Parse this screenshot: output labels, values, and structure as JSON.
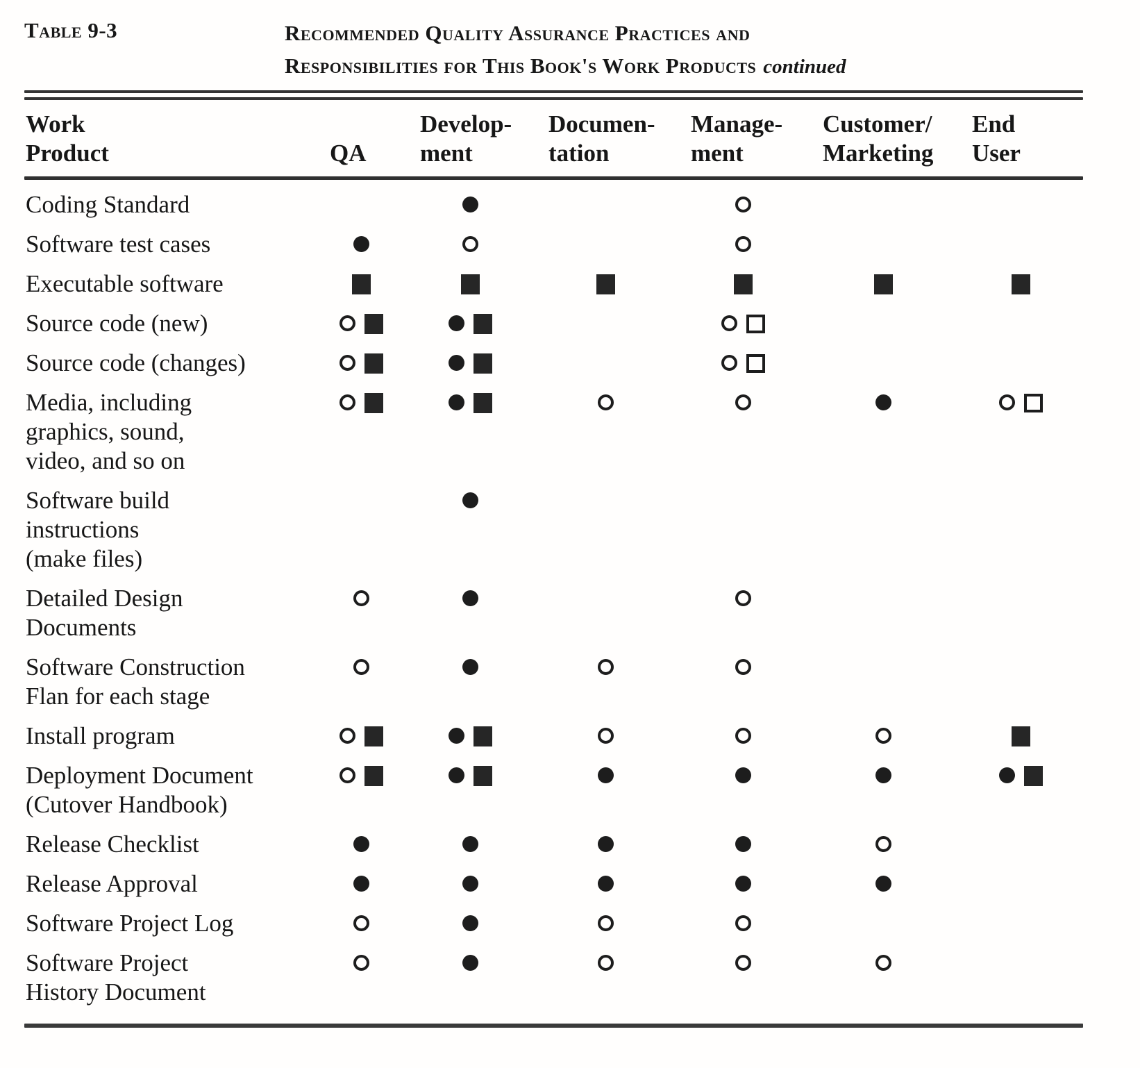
{
  "colors": {
    "ink": "#1d1d1d",
    "paper": "#fffefd"
  },
  "caption": {
    "label": "Table 9-3",
    "title_line1": "Recommended Quality Assurance Practices and",
    "title_line2": "Responsibilities for This Book's Work Products",
    "continued": "continued"
  },
  "header": {
    "product_lines": [
      "Work",
      "Product"
    ],
    "columns": [
      {
        "key": "qa",
        "lines": [
          "QA"
        ]
      },
      {
        "key": "development",
        "lines": [
          "Develop-",
          "ment"
        ]
      },
      {
        "key": "documentation",
        "lines": [
          "Documen-",
          "tation"
        ]
      },
      {
        "key": "management",
        "lines": [
          "Manage-",
          "ment"
        ]
      },
      {
        "key": "customer-marketing",
        "lines": [
          "Customer/",
          "Marketing"
        ]
      },
      {
        "key": "end-user",
        "lines": [
          "End",
          "User"
        ]
      }
    ]
  },
  "symbols": {
    "fc": "filled-circle",
    "oc": "open-circle",
    "fs": "filled-square",
    "os": "open-square"
  },
  "rows": [
    {
      "product_lines": [
        "Coding Standard"
      ],
      "cells": [
        [],
        [
          "fc"
        ],
        [],
        [
          "oc"
        ],
        [],
        []
      ]
    },
    {
      "product_lines": [
        "Software test cases"
      ],
      "cells": [
        [
          "fc"
        ],
        [
          "oc"
        ],
        [],
        [
          "oc"
        ],
        [],
        []
      ]
    },
    {
      "product_lines": [
        "Executable software"
      ],
      "cells": [
        [
          "fs"
        ],
        [
          "fs"
        ],
        [
          "fs"
        ],
        [
          "fs"
        ],
        [
          "fs"
        ],
        [
          "fs"
        ]
      ]
    },
    {
      "product_lines": [
        "Source code (new)"
      ],
      "cells": [
        [
          "oc",
          "fs"
        ],
        [
          "fc",
          "fs"
        ],
        [],
        [
          "oc",
          "os"
        ],
        [],
        []
      ]
    },
    {
      "product_lines": [
        "Source code (changes)"
      ],
      "cells": [
        [
          "oc",
          "fs"
        ],
        [
          "fc",
          "fs"
        ],
        [],
        [
          "oc",
          "os"
        ],
        [],
        []
      ]
    },
    {
      "product_lines": [
        "Media, including",
        "graphics, sound,",
        "video, and so on"
      ],
      "cells": [
        [
          "oc",
          "fs"
        ],
        [
          "fc",
          "fs"
        ],
        [
          "oc"
        ],
        [
          "oc"
        ],
        [
          "fc"
        ],
        [
          "oc",
          "os"
        ]
      ]
    },
    {
      "product_lines": [
        "Software build",
        "instructions",
        "(make files)"
      ],
      "cells": [
        [],
        [
          "fc"
        ],
        [],
        [],
        [],
        []
      ]
    },
    {
      "product_lines": [
        "Detailed Design",
        "Documents"
      ],
      "cells": [
        [
          "oc"
        ],
        [
          "fc"
        ],
        [],
        [
          "oc"
        ],
        [],
        []
      ]
    },
    {
      "product_lines": [
        "Software Construction",
        "Flan for each stage"
      ],
      "cells": [
        [
          "oc"
        ],
        [
          "fc"
        ],
        [
          "oc"
        ],
        [
          "oc"
        ],
        [],
        []
      ]
    },
    {
      "product_lines": [
        "Install program"
      ],
      "cells": [
        [
          "oc",
          "fs"
        ],
        [
          "fc",
          "fs"
        ],
        [
          "oc"
        ],
        [
          "oc"
        ],
        [
          "oc"
        ],
        [
          "fs"
        ]
      ]
    },
    {
      "product_lines": [
        "Deployment Document",
        "(Cutover Handbook)"
      ],
      "cells": [
        [
          "oc",
          "fs"
        ],
        [
          "fc",
          "fs"
        ],
        [
          "fc"
        ],
        [
          "fc"
        ],
        [
          "fc"
        ],
        [
          "fc",
          "fs"
        ]
      ]
    },
    {
      "product_lines": [
        "Release Checklist"
      ],
      "cells": [
        [
          "fc"
        ],
        [
          "fc"
        ],
        [
          "fc"
        ],
        [
          "fc"
        ],
        [
          "oc"
        ],
        []
      ]
    },
    {
      "product_lines": [
        "Release Approval"
      ],
      "cells": [
        [
          "fc"
        ],
        [
          "fc"
        ],
        [
          "fc"
        ],
        [
          "fc"
        ],
        [
          "fc"
        ],
        []
      ]
    },
    {
      "product_lines": [
        "Software Project Log"
      ],
      "cells": [
        [
          "oc"
        ],
        [
          "fc"
        ],
        [
          "oc"
        ],
        [
          "oc"
        ],
        [],
        []
      ]
    },
    {
      "product_lines": [
        "Software Project",
        "History Document"
      ],
      "cells": [
        [
          "oc"
        ],
        [
          "fc"
        ],
        [
          "oc"
        ],
        [
          "oc"
        ],
        [
          "oc"
        ],
        []
      ]
    }
  ]
}
